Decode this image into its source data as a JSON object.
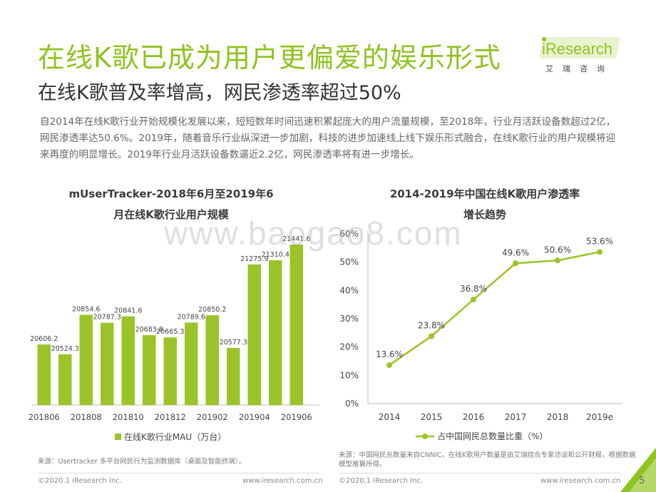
{
  "header": {
    "title": "在线K歌已成为用户更偏爱的娱乐形式",
    "subtitle": "在线K歌普及率增高，网民渗透率超过50%",
    "logo_text": "iResearch",
    "logo_cn": "艾瑞咨询"
  },
  "intro": "自2014年在线K歌行业开始规模化发展以来，短短数年时间迅速积累起庞大的用户流量规模，至2018年，行业月活跃设备数超过2亿，网民渗透率达50.6%。2019年，随着音乐行业纵深进一步加剧，科技的进步加速线上线下娱乐形式融合，在线K歌行业的用户规模将迎来再度的明显增长。2019年行业月活跃设备数逼近2.2亿，网民渗透率将有进一步增长。",
  "watermark": "www.baogao8.com",
  "chart_data": [
    {
      "type": "bar",
      "title_line1": "mUserTracker-2018年6月至2019年6",
      "title_line2": "月在线K歌行业用户规模",
      "categories": [
        "201806",
        "201807",
        "201808",
        "201809",
        "201810",
        "201811",
        "201812",
        "201901",
        "201902",
        "201903",
        "201904",
        "201905",
        "201906"
      ],
      "tick_labels": [
        "201806",
        "201808",
        "201810",
        "201812",
        "201902",
        "201904",
        "201906"
      ],
      "values": [
        20606.2,
        20524.3,
        20854.6,
        20787.3,
        20841.6,
        20683.8,
        20665.3,
        20789.6,
        20850.2,
        20577.3,
        21275.9,
        21310.4,
        21441.6
      ],
      "value_labels": [
        "20606.2",
        "20524.3",
        "20854.6",
        "20787.3",
        "20841.6",
        "20683.8",
        "20665.3",
        "20789.6",
        "20850.2",
        "20577.3",
        "21275.9",
        "21310.4",
        "21441.6"
      ],
      "legend": "在线K歌行业MAU（万台）",
      "legend_position": "bottom",
      "color": "#9ac42a"
    },
    {
      "type": "line",
      "title_line1": "2014-2019年中国在线K歌用户渗透率",
      "title_line2": "增长趋势",
      "x": [
        "2014",
        "2015",
        "2016",
        "2017",
        "2018",
        "2019e"
      ],
      "values": [
        13.6,
        23.8,
        36.8,
        49.6,
        50.6,
        53.6
      ],
      "value_labels": [
        "13.6%",
        "23.8%",
        "36.8%",
        "49.6%",
        "50.6%",
        "53.6%"
      ],
      "y_ticks": [
        "0%",
        "10%",
        "20%",
        "30%",
        "40%",
        "50%",
        "60%"
      ],
      "ylim": [
        0,
        60
      ],
      "grid": false,
      "legend": "占中国网民总数量比重（%）",
      "legend_position": "bottom",
      "color": "#9ac42a"
    }
  ],
  "sources": {
    "left": "来源：Usertracker 多平台网民行为监测数据库（桌面及智能终端）。",
    "right": "来源：中国网民总数量来自CNNIC，在线K歌用户数量是由艾瑞结合专家访谈和公开财报，根据数据模型推算所得。"
  },
  "footer": {
    "left_copyright": "©2020.1 iResearch Inc.",
    "left_url": "www.iresearch.com.cn",
    "right_copyright": "©2020.1 iResearch Inc.",
    "right_url": "www.iresearch.com.cn",
    "page_number": "5"
  }
}
